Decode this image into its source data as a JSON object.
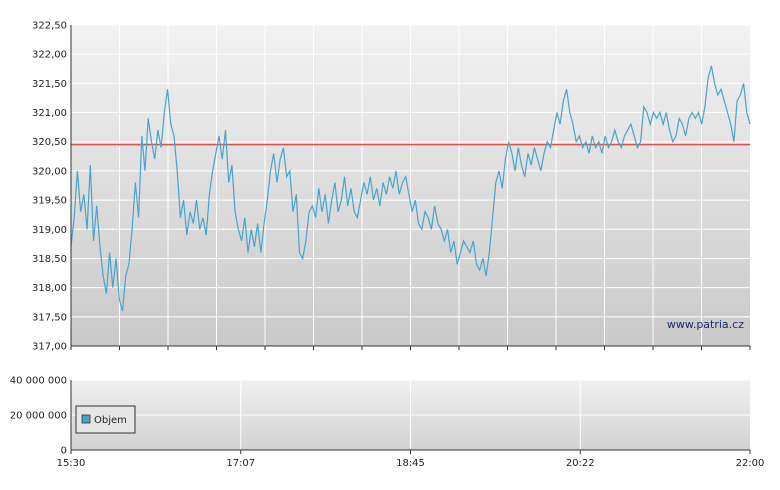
{
  "chart_data": [
    {
      "type": "line",
      "title": "",
      "xlabel": "",
      "ylabel": "",
      "ylim": [
        317.0,
        322.5
      ],
      "y_ticks": [
        "322,50",
        "322,00",
        "321,50",
        "321,00",
        "320,50",
        "320,00",
        "319,50",
        "319,00",
        "318,50",
        "318,00",
        "317,50",
        "317,00"
      ],
      "reference_line": {
        "value": 320.45,
        "color": "#d9534f"
      },
      "series_color": "#4aa3cc",
      "watermark": "www.patria.cz",
      "grid": true,
      "series": [
        {
          "values": [
            [
              0,
              318.7
            ],
            [
              2,
              319.2
            ],
            [
              4,
              320.0
            ],
            [
              6,
              319.3
            ],
            [
              8,
              319.6
            ],
            [
              10,
              319.0
            ],
            [
              12,
              320.1
            ],
            [
              14,
              318.8
            ],
            [
              16,
              319.4
            ],
            [
              18,
              318.7
            ],
            [
              20,
              318.2
            ],
            [
              22,
              317.9
            ],
            [
              24,
              318.6
            ],
            [
              26,
              318.0
            ],
            [
              28,
              318.5
            ],
            [
              30,
              317.8
            ],
            [
              32,
              317.6
            ],
            [
              34,
              318.2
            ],
            [
              36,
              318.4
            ],
            [
              38,
              319.0
            ],
            [
              40,
              319.8
            ],
            [
              42,
              319.2
            ],
            [
              44,
              320.6
            ],
            [
              46,
              320.0
            ],
            [
              48,
              320.9
            ],
            [
              50,
              320.5
            ],
            [
              52,
              320.2
            ],
            [
              54,
              320.7
            ],
            [
              56,
              320.4
            ],
            [
              58,
              321.0
            ],
            [
              60,
              321.4
            ],
            [
              62,
              320.8
            ],
            [
              64,
              320.6
            ],
            [
              66,
              320.0
            ],
            [
              68,
              319.2
            ],
            [
              70,
              319.5
            ],
            [
              72,
              318.9
            ],
            [
              74,
              319.3
            ],
            [
              76,
              319.1
            ],
            [
              78,
              319.5
            ],
            [
              80,
              319.0
            ],
            [
              82,
              319.2
            ],
            [
              84,
              318.9
            ],
            [
              86,
              319.6
            ],
            [
              88,
              320.0
            ],
            [
              90,
              320.3
            ],
            [
              92,
              320.6
            ],
            [
              94,
              320.2
            ],
            [
              96,
              320.7
            ],
            [
              98,
              319.8
            ],
            [
              100,
              320.1
            ],
            [
              102,
              319.3
            ],
            [
              104,
              319.0
            ],
            [
              106,
              318.8
            ],
            [
              108,
              319.2
            ],
            [
              110,
              318.6
            ],
            [
              112,
              319.0
            ],
            [
              114,
              318.7
            ],
            [
              116,
              319.1
            ],
            [
              118,
              318.6
            ],
            [
              120,
              319.1
            ],
            [
              122,
              319.5
            ],
            [
              124,
              320.0
            ],
            [
              126,
              320.3
            ],
            [
              128,
              319.8
            ],
            [
              130,
              320.2
            ],
            [
              132,
              320.4
            ],
            [
              134,
              319.9
            ],
            [
              136,
              320.0
            ],
            [
              138,
              319.3
            ],
            [
              140,
              319.6
            ],
            [
              142,
              318.6
            ],
            [
              144,
              318.5
            ],
            [
              146,
              318.8
            ],
            [
              148,
              319.3
            ],
            [
              150,
              319.4
            ],
            [
              152,
              319.2
            ],
            [
              154,
              319.7
            ],
            [
              156,
              319.3
            ],
            [
              158,
              319.6
            ],
            [
              160,
              319.1
            ],
            [
              162,
              319.5
            ],
            [
              164,
              319.8
            ],
            [
              166,
              319.3
            ],
            [
              168,
              319.5
            ],
            [
              170,
              319.9
            ],
            [
              172,
              319.4
            ],
            [
              174,
              319.7
            ],
            [
              176,
              319.3
            ],
            [
              178,
              319.2
            ],
            [
              180,
              319.5
            ],
            [
              182,
              319.8
            ],
            [
              184,
              319.6
            ],
            [
              186,
              319.9
            ],
            [
              188,
              319.5
            ],
            [
              190,
              319.7
            ],
            [
              192,
              319.4
            ],
            [
              194,
              319.8
            ],
            [
              196,
              319.6
            ],
            [
              198,
              319.9
            ],
            [
              200,
              319.7
            ],
            [
              202,
              320.0
            ],
            [
              204,
              319.6
            ],
            [
              206,
              319.8
            ],
            [
              208,
              319.9
            ],
            [
              210,
              319.6
            ],
            [
              212,
              319.3
            ],
            [
              214,
              319.5
            ],
            [
              216,
              319.1
            ],
            [
              218,
              319.0
            ],
            [
              220,
              319.3
            ],
            [
              222,
              319.2
            ],
            [
              224,
              319.0
            ],
            [
              226,
              319.4
            ],
            [
              228,
              319.1
            ],
            [
              230,
              319.0
            ],
            [
              232,
              318.8
            ],
            [
              234,
              319.0
            ],
            [
              236,
              318.6
            ],
            [
              238,
              318.8
            ],
            [
              240,
              318.4
            ],
            [
              242,
              318.6
            ],
            [
              244,
              318.8
            ],
            [
              246,
              318.7
            ],
            [
              248,
              318.6
            ],
            [
              250,
              318.8
            ],
            [
              252,
              318.4
            ],
            [
              254,
              318.3
            ],
            [
              256,
              318.5
            ],
            [
              258,
              318.2
            ],
            [
              260,
              318.6
            ],
            [
              262,
              319.2
            ],
            [
              264,
              319.8
            ],
            [
              266,
              320.0
            ],
            [
              268,
              319.7
            ],
            [
              270,
              320.2
            ],
            [
              272,
              320.5
            ],
            [
              274,
              320.3
            ],
            [
              276,
              320.0
            ],
            [
              278,
              320.4
            ],
            [
              280,
              320.1
            ],
            [
              282,
              319.9
            ],
            [
              284,
              320.3
            ],
            [
              286,
              320.1
            ],
            [
              288,
              320.4
            ],
            [
              290,
              320.2
            ],
            [
              292,
              320.0
            ],
            [
              294,
              320.3
            ],
            [
              296,
              320.5
            ],
            [
              298,
              320.4
            ],
            [
              300,
              320.7
            ],
            [
              302,
              321.0
            ],
            [
              304,
              320.8
            ],
            [
              306,
              321.2
            ],
            [
              308,
              321.4
            ],
            [
              310,
              321.0
            ],
            [
              312,
              320.8
            ],
            [
              314,
              320.5
            ],
            [
              316,
              320.6
            ],
            [
              318,
              320.4
            ],
            [
              320,
              320.5
            ],
            [
              322,
              320.3
            ],
            [
              324,
              320.6
            ],
            [
              326,
              320.4
            ],
            [
              328,
              320.5
            ],
            [
              330,
              320.3
            ],
            [
              332,
              320.6
            ],
            [
              334,
              320.4
            ],
            [
              336,
              320.5
            ],
            [
              338,
              320.7
            ],
            [
              340,
              320.5
            ],
            [
              342,
              320.4
            ],
            [
              344,
              320.6
            ],
            [
              346,
              320.7
            ],
            [
              348,
              320.8
            ],
            [
              350,
              320.6
            ],
            [
              352,
              320.4
            ],
            [
              354,
              320.5
            ],
            [
              356,
              321.1
            ],
            [
              358,
              321.0
            ],
            [
              360,
              320.8
            ],
            [
              362,
              321.0
            ],
            [
              364,
              320.9
            ],
            [
              366,
              321.0
            ],
            [
              368,
              320.8
            ],
            [
              370,
              321.0
            ],
            [
              372,
              320.7
            ],
            [
              374,
              320.5
            ],
            [
              376,
              320.6
            ],
            [
              378,
              320.9
            ],
            [
              380,
              320.8
            ],
            [
              382,
              320.6
            ],
            [
              384,
              320.9
            ],
            [
              386,
              321.0
            ],
            [
              388,
              320.9
            ],
            [
              390,
              321.0
            ],
            [
              392,
              320.8
            ],
            [
              394,
              321.1
            ],
            [
              396,
              321.6
            ],
            [
              398,
              321.8
            ],
            [
              400,
              321.5
            ],
            [
              402,
              321.3
            ],
            [
              404,
              321.4
            ],
            [
              406,
              321.2
            ],
            [
              408,
              321.0
            ],
            [
              410,
              320.8
            ],
            [
              412,
              320.5
            ],
            [
              414,
              321.2
            ],
            [
              416,
              321.3
            ],
            [
              418,
              321.5
            ],
            [
              420,
              321.0
            ],
            [
              422,
              320.8
            ]
          ]
        }
      ],
      "x_range": [
        0,
        422
      ]
    },
    {
      "type": "bar",
      "title": "",
      "xlabel": "",
      "ylabel": "",
      "ylim": [
        0,
        40000000
      ],
      "y_ticks": [
        "40 000 000",
        "20 000 000",
        "0"
      ],
      "x_ticks": [
        "15:30",
        "17:07",
        "18:45",
        "20:22",
        "22:00"
      ],
      "grid": true,
      "legend": {
        "position": "bottom-left",
        "entries": [
          "Objem"
        ]
      },
      "legend_color": "#4aa3cc",
      "series": [
        {
          "name": "Objem",
          "values": []
        }
      ]
    }
  ]
}
